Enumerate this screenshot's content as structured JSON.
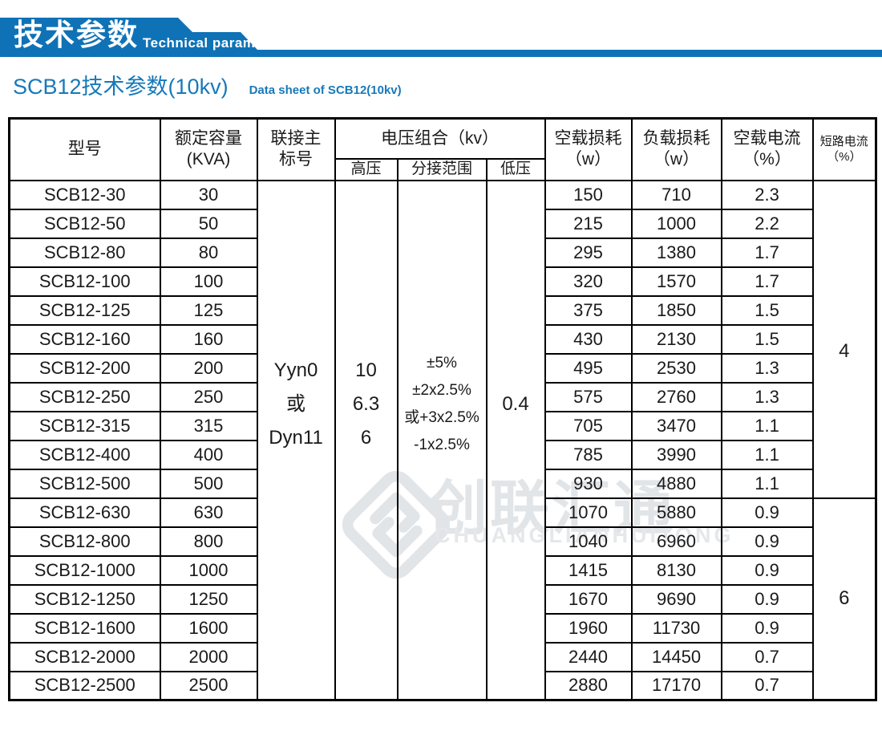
{
  "banner": {
    "title_zh": "技术参数",
    "title_en": "Technical parameter",
    "bar_color": "#0f72b6",
    "text_color": "#ffffff"
  },
  "subtitle": {
    "zh": "SCB12技术参数(10kv)",
    "en": "Data sheet of SCB12(10kv)",
    "color": "#1779b9"
  },
  "watermark": {
    "logo_icon": "diamond-logo",
    "zh": "创联汇通",
    "en": "CHUANGLIANHUITONG",
    "color": "#e2e5e8"
  },
  "table": {
    "header_bg": "#a6dcf3",
    "border_color": "#000000",
    "headers": {
      "model": "型号",
      "capacity_l1": "额定容量",
      "capacity_l2": "(KVA)",
      "connection_l1": "联接主",
      "connection_l2": "标号",
      "voltage_group": "电压组合（kv）",
      "hv": "高压",
      "tap": "分接范围",
      "lv": "低压",
      "noload_loss_l1": "空载损耗",
      "noload_loss_l2": "（w）",
      "load_loss_l1": "负载损耗",
      "load_loss_l2": "（w）",
      "noload_current_l1": "空载电流",
      "noload_current_l2": "（%）",
      "short_current_l1": "短路电流",
      "short_current_l2": "（%）"
    },
    "merged": {
      "connection_lines": [
        "Yyn0",
        "或",
        "Dyn11"
      ],
      "hv_lines": [
        "10",
        "6.3",
        "6"
      ],
      "tap_lines": [
        "±5%",
        "±2x2.5%",
        "或+3x2.5%",
        "-1x2.5%"
      ],
      "lv": "0.4",
      "short_circuit": [
        {
          "value": "4",
          "row_start": 0,
          "row_count": 11
        },
        {
          "value": "6",
          "row_start": 11,
          "row_count": 7
        }
      ]
    },
    "rows": [
      {
        "model": "SCB12-30",
        "capacity": "30",
        "noload_loss": "150",
        "load_loss": "710",
        "noload_current": "2.3"
      },
      {
        "model": "SCB12-50",
        "capacity": "50",
        "noload_loss": "215",
        "load_loss": "1000",
        "noload_current": "2.2"
      },
      {
        "model": "SCB12-80",
        "capacity": "80",
        "noload_loss": "295",
        "load_loss": "1380",
        "noload_current": "1.7"
      },
      {
        "model": "SCB12-100",
        "capacity": "100",
        "noload_loss": "320",
        "load_loss": "1570",
        "noload_current": "1.7"
      },
      {
        "model": "SCB12-125",
        "capacity": "125",
        "noload_loss": "375",
        "load_loss": "1850",
        "noload_current": "1.5"
      },
      {
        "model": "SCB12-160",
        "capacity": "160",
        "noload_loss": "430",
        "load_loss": "2130",
        "noload_current": "1.5"
      },
      {
        "model": "SCB12-200",
        "capacity": "200",
        "noload_loss": "495",
        "load_loss": "2530",
        "noload_current": "1.3"
      },
      {
        "model": "SCB12-250",
        "capacity": "250",
        "noload_loss": "575",
        "load_loss": "2760",
        "noload_current": "1.3"
      },
      {
        "model": "SCB12-315",
        "capacity": "315",
        "noload_loss": "705",
        "load_loss": "3470",
        "noload_current": "1.1"
      },
      {
        "model": "SCB12-400",
        "capacity": "400",
        "noload_loss": "785",
        "load_loss": "3990",
        "noload_current": "1.1"
      },
      {
        "model": "SCB12-500",
        "capacity": "500",
        "noload_loss": "930",
        "load_loss": "4880",
        "noload_current": "1.1"
      },
      {
        "model": "SCB12-630",
        "capacity": "630",
        "noload_loss": "1070",
        "load_loss": "5880",
        "noload_current": "0.9"
      },
      {
        "model": "SCB12-800",
        "capacity": "800",
        "noload_loss": "1040",
        "load_loss": "6960",
        "noload_current": "0.9"
      },
      {
        "model": "SCB12-1000",
        "capacity": "1000",
        "noload_loss": "1415",
        "load_loss": "8130",
        "noload_current": "0.9"
      },
      {
        "model": "SCB12-1250",
        "capacity": "1250",
        "noload_loss": "1670",
        "load_loss": "9690",
        "noload_current": "0.9"
      },
      {
        "model": "SCB12-1600",
        "capacity": "1600",
        "noload_loss": "1960",
        "load_loss": "11730",
        "noload_current": "0.9"
      },
      {
        "model": "SCB12-2000",
        "capacity": "2000",
        "noload_loss": "2440",
        "load_loss": "14450",
        "noload_current": "0.7"
      },
      {
        "model": "SCB12-2500",
        "capacity": "2500",
        "noload_loss": "2880",
        "load_loss": "17170",
        "noload_current": "0.7"
      }
    ]
  }
}
